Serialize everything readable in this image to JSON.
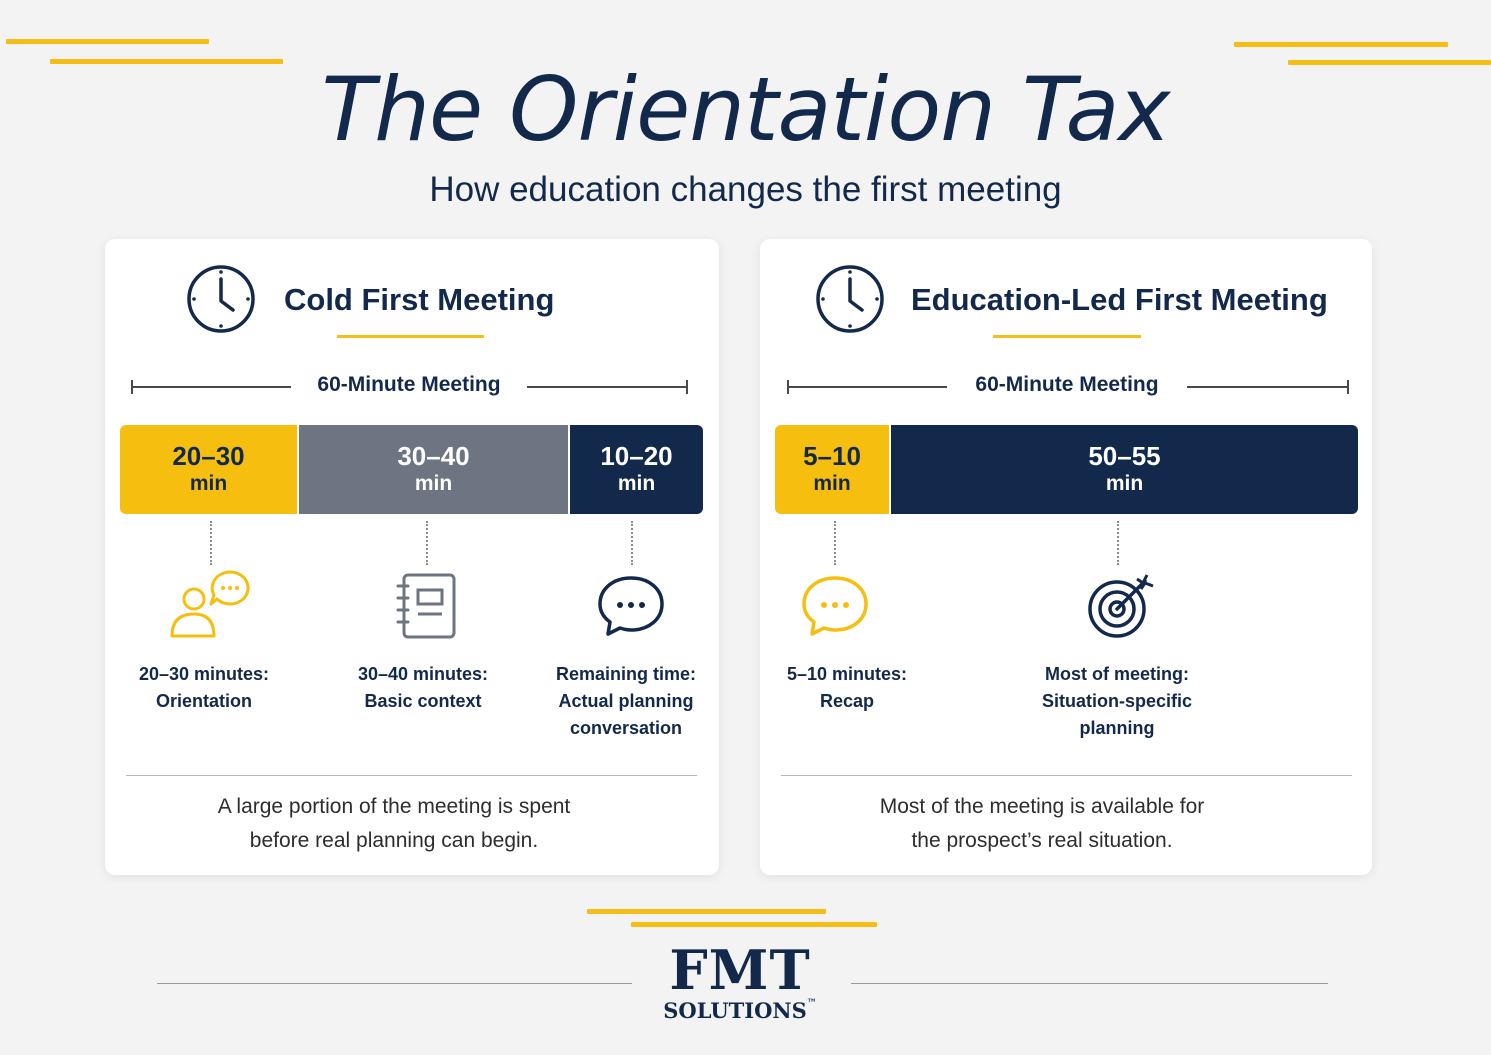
{
  "title": "The Orientation Tax",
  "subtitle": "How education changes the first meeting",
  "colors": {
    "navy": "#13294b",
    "yellow": "#f6bf10",
    "gray": "#6d7582"
  },
  "cold": {
    "icon": "clock-icon",
    "title": "Cold First Meeting",
    "range_label": "60-Minute Meeting",
    "segments": [
      {
        "value": "20–30",
        "unit": "min",
        "color": "yellow"
      },
      {
        "value": "30–40",
        "unit": "min",
        "color": "gray"
      },
      {
        "value": "10–20",
        "unit": "min",
        "color": "navy"
      }
    ],
    "items": [
      {
        "icon": "people-chat-icon",
        "line1": "20–30 minutes:",
        "line2": "Orientation",
        "line3": ""
      },
      {
        "icon": "notebook-icon",
        "line1": "30–40 minutes:",
        "line2": "Basic context",
        "line3": ""
      },
      {
        "icon": "speech-bubble-icon",
        "line1": "Remaining time:",
        "line2": "Actual planning",
        "line3": "conversation"
      }
    ],
    "note_line1": "A large portion of the meeting is spent",
    "note_line2": "before real planning can begin."
  },
  "edu": {
    "icon": "clock-icon",
    "title": "Education-Led First Meeting",
    "range_label": "60-Minute Meeting",
    "segments": [
      {
        "value": "5–10",
        "unit": "min",
        "color": "yellow"
      },
      {
        "value": "50–55",
        "unit": "min",
        "color": "navy"
      }
    ],
    "items": [
      {
        "icon": "speech-bubble-icon",
        "line1": "5–10 minutes:",
        "line2": "Recap",
        "line3": ""
      },
      {
        "icon": "target-icon",
        "line1": "Most of meeting:",
        "line2": "Situation-specific",
        "line3": "planning"
      }
    ],
    "note_line1": "Most of the meeting is available for",
    "note_line2": "the prospect’s real situation."
  },
  "logo": {
    "main": "FMT",
    "sub": "SOLUTIONS",
    "tm": "™"
  }
}
